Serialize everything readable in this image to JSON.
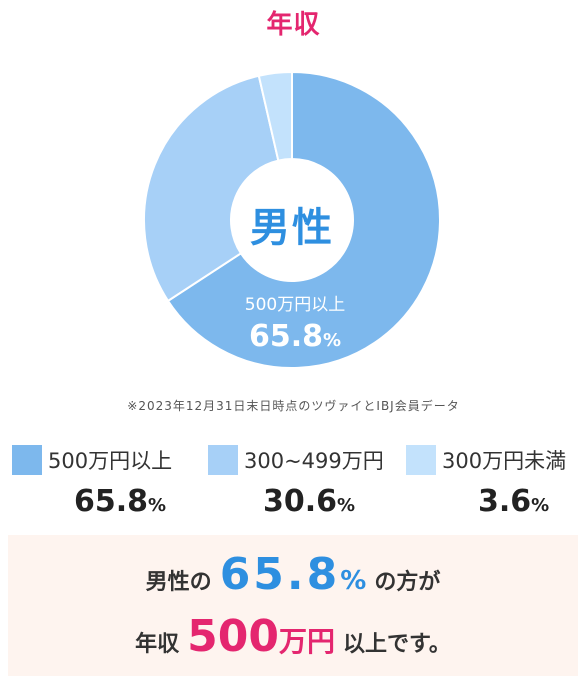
{
  "page": {
    "title": "年収",
    "center_label": "男性",
    "note": "※2023年12月31日末日時点のツヴァイとIBJ会員データ"
  },
  "chart_data": {
    "type": "pie",
    "categories": [
      "500万円以上",
      "300~499万円",
      "300万円未満"
    ],
    "values": [
      65.8,
      30.6,
      3.6
    ],
    "value_labels": [
      "65.8",
      "30.6",
      "3.6"
    ],
    "unit": "%",
    "colors": [
      "#7db8ed",
      "#a7d0f7",
      "#c3e2fc"
    ],
    "slice_label": {
      "category": "500万円以上",
      "value": "65.8",
      "unit": "%"
    }
  },
  "summary": {
    "line1_prefix": "男性の",
    "line1_value": "65.8",
    "line1_unit": "%",
    "line1_suffix": "の方が",
    "line2_prefix": "年収",
    "line2_value": "500",
    "line2_unit": "万円",
    "line2_suffix": "以上です。"
  }
}
